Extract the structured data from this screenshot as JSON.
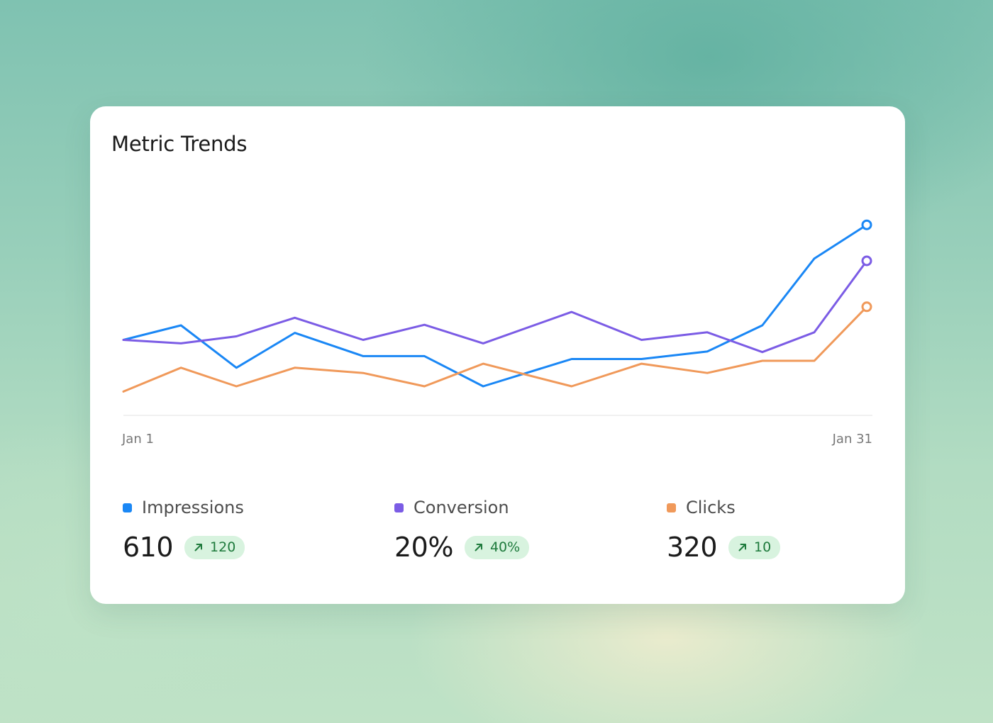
{
  "card": {
    "title": "Metric Trends"
  },
  "chart_data": {
    "type": "line",
    "x_start_label": "Jan 1",
    "x_end_label": "Jan 31",
    "series": [
      {
        "name": "Impressions",
        "color": "#1a87f5",
        "values": [
          400,
          425,
          352,
          412,
          372,
          372,
          320,
          367,
          367,
          380,
          425,
          540,
          598
        ]
      },
      {
        "name": "Conversion",
        "color": "#7b5ce5",
        "values": [
          400,
          394,
          406,
          438,
          400,
          426,
          394,
          448,
          400,
          413,
          379,
          413,
          536
        ]
      },
      {
        "name": "Clicks",
        "color": "#f0995a",
        "values": [
          311,
          352,
          320,
          352,
          343,
          320,
          359,
          320,
          359,
          343,
          364,
          364,
          457
        ]
      }
    ],
    "ylim": [
      270,
      680
    ],
    "grid": false,
    "baseline": true
  },
  "legend": {
    "metrics": [
      {
        "name": "Impressions",
        "value": "610",
        "change": "120",
        "color": "#1a87f5",
        "icon": "trend-up-icon"
      },
      {
        "name": "Conversion",
        "value": "20%",
        "change": "40%",
        "color": "#7b5ce5",
        "icon": "trend-up-icon"
      },
      {
        "name": "Clicks",
        "value": "320",
        "change": "10",
        "color": "#f0995a",
        "icon": "trend-up-icon"
      }
    ]
  }
}
